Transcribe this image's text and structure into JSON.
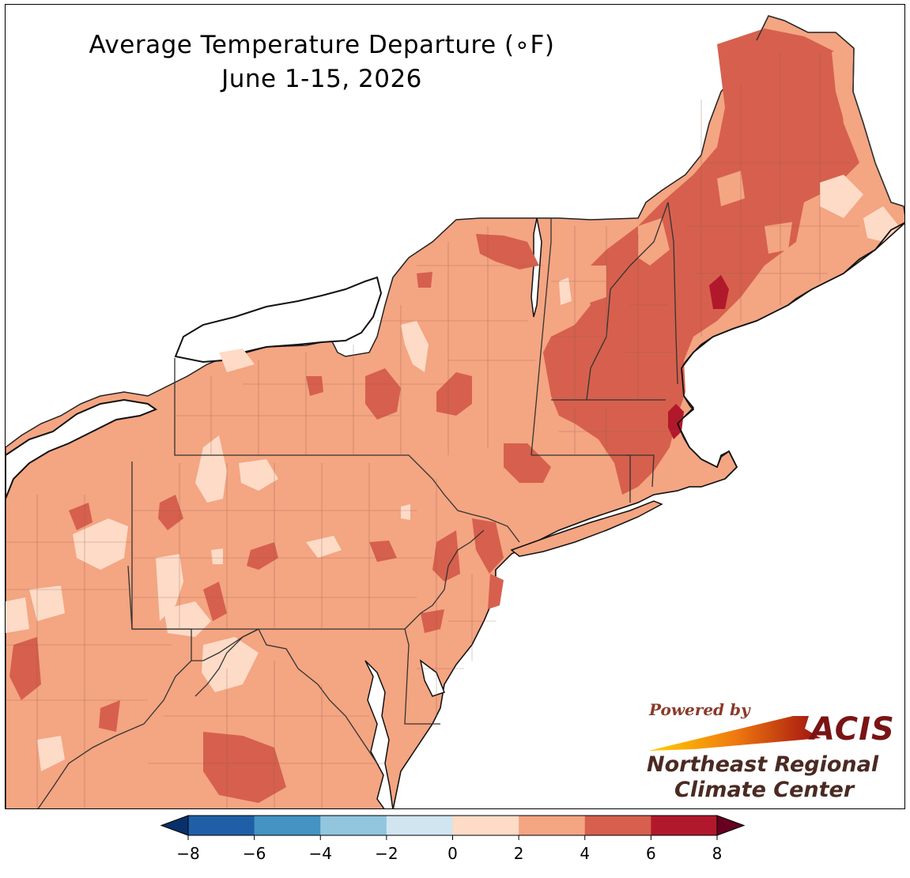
{
  "title": {
    "line1": "Average Temperature Departure (∘F)",
    "line2": "June 1-15, 2026"
  },
  "logo": {
    "powered_by": "Powered by",
    "acis": "ACIS",
    "org_line1": "Northeast Regional",
    "org_line2": "Climate Center"
  },
  "legend": {
    "extend": "both",
    "min": -8,
    "max": 8,
    "ticks": [
      "−8",
      "−6",
      "−4",
      "−2",
      "0",
      "2",
      "4",
      "6",
      "8"
    ],
    "colors": {
      "below_min": "#08306b",
      "bins": [
        "#1f5fa8",
        "#4393c3",
        "#92c5de",
        "#d1e5f0",
        "#fddbc7",
        "#f4a582",
        "#d6604d",
        "#b2182b"
      ],
      "above_max": "#67001f"
    }
  },
  "map": {
    "region": "Northeast United States",
    "background_class": "2 to 4",
    "dominant_category_color": "#f4a582",
    "land_color": "#f4a582",
    "water_color": "#ffffff"
  }
}
